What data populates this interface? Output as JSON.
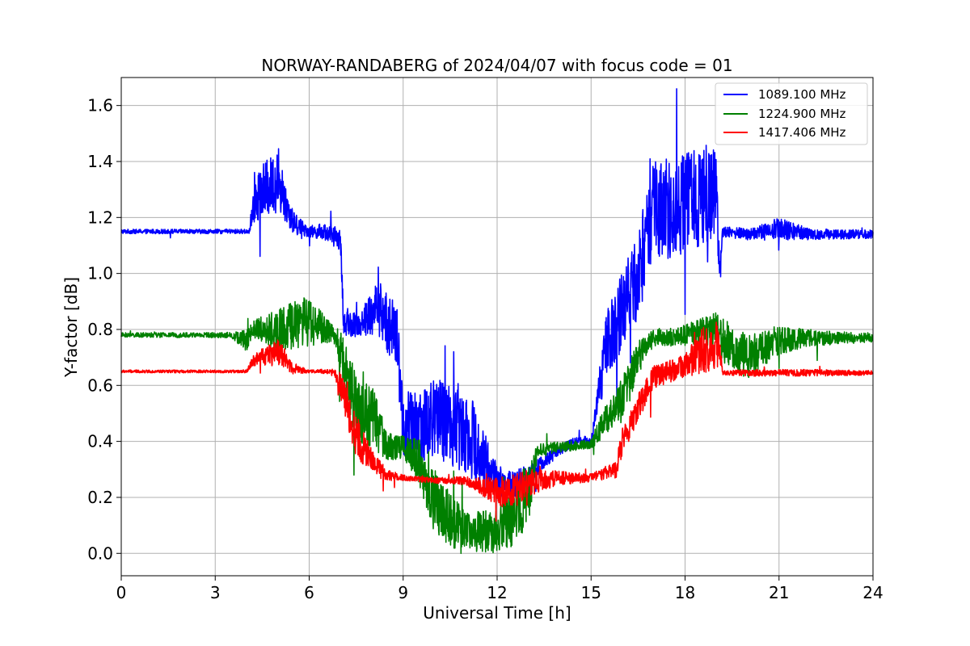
{
  "chart_data": {
    "type": "line",
    "title": "NORWAY-RANDABERG of 2024/04/07 with focus code = 01",
    "xlabel": "Universal Time [h]",
    "ylabel": "Y-factor [dB]",
    "xlim": [
      0,
      24
    ],
    "ylim": [
      -0.08,
      1.7
    ],
    "xticks": [
      "0",
      "3",
      "6",
      "9",
      "12",
      "15",
      "18",
      "21",
      "24"
    ],
    "xtick_values": [
      0,
      3,
      6,
      9,
      12,
      15,
      18,
      21,
      24
    ],
    "yticks": [
      "0.0",
      "0.2",
      "0.4",
      "0.6",
      "0.8",
      "1.0",
      "1.2",
      "1.4",
      "1.6"
    ],
    "ytick_values": [
      0.0,
      0.2,
      0.4,
      0.6,
      0.8,
      1.0,
      1.2,
      1.4,
      1.6
    ],
    "grid": true,
    "legend_position": "top-right",
    "series": [
      {
        "name": "1089.100 MHz",
        "color": "#0000ff",
        "x": [
          0,
          4.1,
          4.2,
          5.0,
          5.5,
          6.0,
          6.5,
          7.0,
          7.1,
          7.6,
          8.2,
          8.8,
          9.0,
          10.0,
          11.0,
          11.5,
          12.0,
          12.5,
          13.3,
          14.0,
          14.5,
          15.0,
          15.5,
          16.0,
          16.5,
          17.0,
          18.0,
          19.0,
          19.1,
          19.2,
          20.0,
          21.0,
          22.0,
          24.0
        ],
        "y": [
          1.15,
          1.15,
          1.27,
          1.33,
          1.18,
          1.15,
          1.15,
          1.12,
          0.82,
          0.82,
          0.88,
          0.77,
          0.45,
          0.48,
          0.45,
          0.35,
          0.26,
          0.24,
          0.31,
          0.37,
          0.4,
          0.4,
          0.75,
          0.87,
          1.0,
          1.22,
          1.25,
          1.3,
          1.0,
          1.15,
          1.14,
          1.16,
          1.14,
          1.14
        ],
        "amplitude": [
          0.008,
          0.008,
          0.09,
          0.11,
          0.04,
          0.02,
          0.03,
          0.04,
          0.04,
          0.05,
          0.1,
          0.12,
          0.12,
          0.15,
          0.16,
          0.12,
          0.06,
          0.05,
          0.03,
          0.02,
          0.015,
          0.02,
          0.12,
          0.14,
          0.16,
          0.18,
          0.18,
          0.18,
          0.03,
          0.02,
          0.02,
          0.04,
          0.02,
          0.015
        ]
      },
      {
        "name": "1224.900 MHz",
        "color": "#008000",
        "x": [
          0,
          3.5,
          4.0,
          4.2,
          5.0,
          6.0,
          6.8,
          7.0,
          7.5,
          8.0,
          8.5,
          9.0,
          9.5,
          10.0,
          10.5,
          11.0,
          12.0,
          12.5,
          13.0,
          13.3,
          14.0,
          15.0,
          15.3,
          16.0,
          16.5,
          17.0,
          18.0,
          19.0,
          19.2,
          20.0,
          21.0,
          22.0,
          24.0
        ],
        "y": [
          0.78,
          0.78,
          0.76,
          0.8,
          0.8,
          0.83,
          0.78,
          0.72,
          0.52,
          0.5,
          0.38,
          0.38,
          0.33,
          0.18,
          0.12,
          0.08,
          0.08,
          0.12,
          0.22,
          0.37,
          0.38,
          0.39,
          0.45,
          0.55,
          0.7,
          0.77,
          0.78,
          0.8,
          0.76,
          0.7,
          0.76,
          0.77,
          0.77
        ],
        "amplitude": [
          0.008,
          0.01,
          0.04,
          0.03,
          0.08,
          0.09,
          0.03,
          0.08,
          0.12,
          0.12,
          0.05,
          0.04,
          0.08,
          0.12,
          0.1,
          0.07,
          0.08,
          0.1,
          0.12,
          0.02,
          0.02,
          0.015,
          0.05,
          0.08,
          0.06,
          0.03,
          0.04,
          0.06,
          0.08,
          0.08,
          0.05,
          0.03,
          0.015
        ]
      },
      {
        "name": "1417.406 MHz",
        "color": "#ff0000",
        "x": [
          0,
          4.0,
          4.2,
          5.0,
          5.5,
          6.0,
          6.8,
          7.0,
          7.5,
          8.0,
          8.5,
          9.0,
          10.0,
          11.0,
          12.0,
          12.5,
          13.0,
          14.0,
          15.0,
          15.8,
          16.0,
          16.5,
          17.0,
          18.0,
          18.5,
          19.0,
          19.1,
          19.2,
          20.0,
          22.0,
          24.0
        ],
        "y": [
          0.65,
          0.65,
          0.69,
          0.72,
          0.66,
          0.65,
          0.65,
          0.6,
          0.42,
          0.33,
          0.28,
          0.27,
          0.26,
          0.26,
          0.22,
          0.22,
          0.25,
          0.27,
          0.27,
          0.3,
          0.4,
          0.52,
          0.63,
          0.67,
          0.72,
          0.75,
          0.72,
          0.645,
          0.645,
          0.645,
          0.645
        ],
        "amplitude": [
          0.005,
          0.005,
          0.02,
          0.05,
          0.02,
          0.005,
          0.01,
          0.05,
          0.08,
          0.04,
          0.02,
          0.01,
          0.01,
          0.015,
          0.05,
          0.06,
          0.05,
          0.025,
          0.015,
          0.03,
          0.05,
          0.05,
          0.04,
          0.04,
          0.08,
          0.09,
          0.05,
          0.008,
          0.012,
          0.012,
          0.008
        ]
      }
    ]
  }
}
